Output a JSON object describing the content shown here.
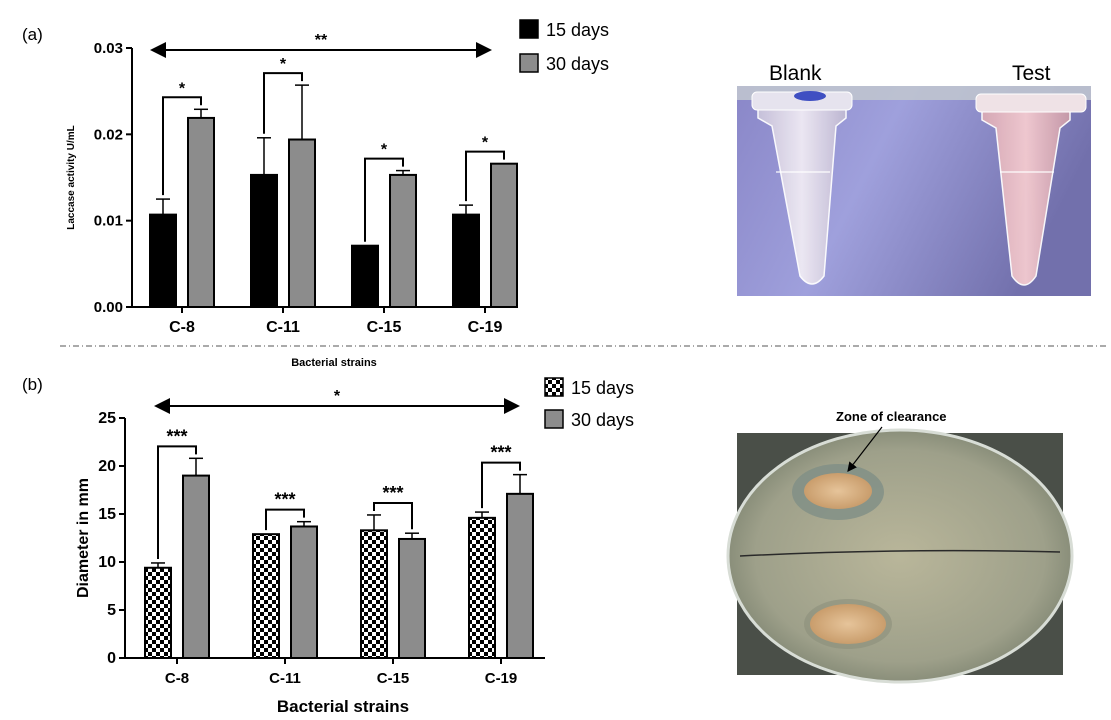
{
  "panels": {
    "a": {
      "label": "(a)"
    },
    "b": {
      "label": "(b)"
    }
  },
  "colors": {
    "series_15_days_a": "#000000",
    "series_30_days": "#8c8c8c",
    "series_15_days_b_pattern": "checkerboard black/white",
    "axis": "#000000",
    "divider": "#555555"
  },
  "photo_a": {
    "label_left": "Blank",
    "label_right": "Test"
  },
  "photo_b": {
    "annotation": "Zone of clearance"
  },
  "chart_data": [
    {
      "panel": "(a)",
      "type": "bar",
      "title": "",
      "xlabel": "Bacterial strains",
      "ylabel": "Laccase activity U/mL",
      "categories": [
        "C-8",
        "C-11",
        "C-15",
        "C-19"
      ],
      "ylim": [
        0,
        0.03
      ],
      "yticks": [
        "0.00",
        "0.01",
        "0.02",
        "0.03"
      ],
      "legend_position": "top-right",
      "series": [
        {
          "name": "15 days",
          "values": [
            0.0107,
            0.0153,
            0.0071,
            0.0107
          ],
          "errors": [
            0.0018,
            0.0043,
            0.0,
            0.0011
          ]
        },
        {
          "name": "30 days",
          "values": [
            0.0219,
            0.0194,
            0.0153,
            0.0166
          ],
          "errors": [
            0.001,
            0.0063,
            0.0005,
            0.0
          ]
        }
      ],
      "significance": [
        {
          "category": "C-8",
          "text": "*"
        },
        {
          "category": "C-11",
          "text": "*"
        },
        {
          "category": "C-15",
          "text": "*"
        },
        {
          "category": "C-19",
          "text": "*"
        },
        {
          "span": "C-8 to C-19",
          "text": "**"
        }
      ]
    },
    {
      "panel": "(b)",
      "type": "bar",
      "title": "",
      "xlabel": "Bacterial strains",
      "ylabel": "Diameter in mm",
      "categories": [
        "C-8",
        "C-11",
        "C-15",
        "C-19"
      ],
      "ylim": [
        0,
        25
      ],
      "yticks": [
        "0",
        "5",
        "10",
        "15",
        "20",
        "25"
      ],
      "legend_position": "top-right",
      "series": [
        {
          "name": "15 days",
          "values": [
            9.4,
            12.9,
            13.3,
            14.6
          ],
          "errors": [
            0.5,
            0.0,
            1.6,
            0.6
          ]
        },
        {
          "name": "30 days",
          "values": [
            19.0,
            13.7,
            12.4,
            17.1
          ],
          "errors": [
            1.8,
            0.5,
            0.6,
            2.0
          ]
        }
      ],
      "significance": [
        {
          "category": "C-8",
          "text": "***"
        },
        {
          "category": "C-11",
          "text": "***"
        },
        {
          "category": "C-15",
          "text": "***"
        },
        {
          "category": "C-19",
          "text": "***"
        },
        {
          "span": "C-8 to C-19",
          "text": "*"
        }
      ]
    }
  ]
}
